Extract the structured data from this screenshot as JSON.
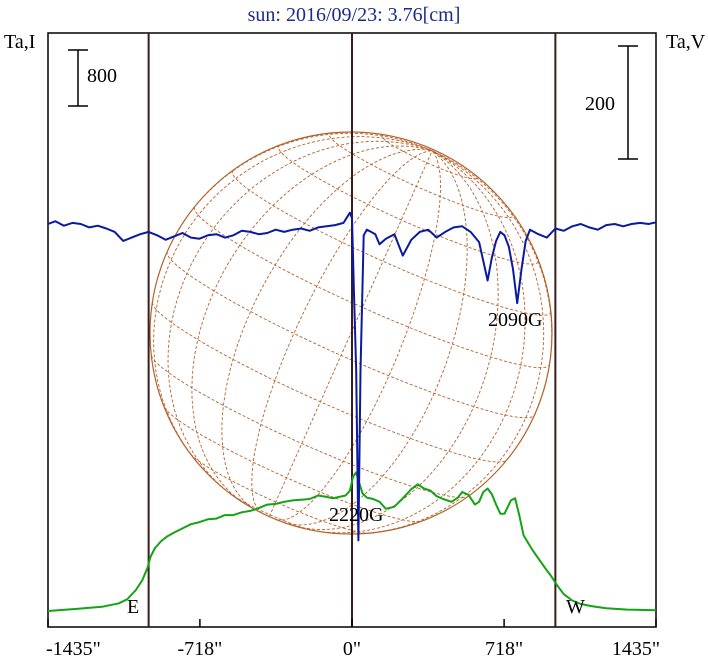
{
  "chart_data": {
    "type": "line",
    "title": "sun: 2016/09/23: 3.76[cm]",
    "left_axis_label": "Ta,I",
    "right_axis_label": "Ta,V",
    "x_ticks": [
      "-1435\"",
      "-718\"",
      "0\"",
      "718\"",
      "1435\""
    ],
    "x_tick_values": [
      -1435,
      -718,
      0,
      718,
      1435
    ],
    "xlim": [
      -1435,
      1435
    ],
    "scale_bars": {
      "intensity": "800",
      "polarization": "200"
    },
    "limb_markers": [
      {
        "label": "E",
        "x": -960
      },
      {
        "label": "W",
        "x": 960
      }
    ],
    "annotations": [
      {
        "text": "2220G",
        "x": 40
      },
      {
        "text": "2090G",
        "x": 780
      }
    ],
    "series": [
      {
        "color": "#14a314",
        "x": [
          -1435,
          -1300,
          -1180,
          -1100,
          -1060,
          -1020,
          -990,
          -965,
          -950,
          -930,
          -900,
          -870,
          -840,
          -800,
          -760,
          -720,
          -680,
          -640,
          -600,
          -560,
          -520,
          -480,
          -440,
          -400,
          -360,
          -320,
          -280,
          -240,
          -200,
          -160,
          -120,
          -90,
          -60,
          -30,
          -10,
          5,
          20,
          35,
          50,
          70,
          100,
          130,
          160,
          200,
          240,
          280,
          310,
          340,
          370,
          400,
          430,
          470,
          500,
          520,
          550,
          580,
          600,
          620,
          640,
          660,
          680,
          700,
          720,
          750,
          770,
          790,
          810,
          830,
          850,
          880,
          910,
          940,
          970,
          1000,
          1040,
          1080,
          1130,
          1200,
          1300,
          1435
        ],
        "values": [
          0,
          30,
          60,
          110,
          170,
          300,
          440,
          620,
          780,
          900,
          1000,
          1070,
          1120,
          1180,
          1240,
          1270,
          1310,
          1320,
          1370,
          1370,
          1410,
          1430,
          1470,
          1520,
          1530,
          1560,
          1580,
          1590,
          1600,
          1650,
          1630,
          1610,
          1630,
          1650,
          1720,
          1920,
          1980,
          1820,
          1680,
          1620,
          1600,
          1560,
          1460,
          1490,
          1610,
          1740,
          1810,
          1750,
          1720,
          1640,
          1600,
          1560,
          1620,
          1700,
          1660,
          1520,
          1560,
          1700,
          1750,
          1670,
          1520,
          1390,
          1390,
          1580,
          1610,
          1360,
          1080,
          980,
          880,
          750,
          620,
          500,
          360,
          240,
          150,
          100,
          70,
          40,
          20,
          10
        ]
      },
      {
        "color": "#0a1aa0",
        "x": [
          -1435,
          -1400,
          -1360,
          -1320,
          -1280,
          -1240,
          -1200,
          -1160,
          -1120,
          -1080,
          -1040,
          -1000,
          -960,
          -920,
          -880,
          -840,
          -800,
          -760,
          -720,
          -680,
          -640,
          -600,
          -560,
          -520,
          -480,
          -440,
          -400,
          -360,
          -320,
          -280,
          -240,
          -200,
          -160,
          -120,
          -80,
          -40,
          -10,
          0,
          10,
          20,
          30,
          40,
          55,
          70,
          90,
          110,
          130,
          160,
          200,
          240,
          280,
          320,
          360,
          400,
          440,
          480,
          520,
          560,
          600,
          640,
          660,
          680,
          700,
          720,
          740,
          760,
          780,
          800,
          820,
          840,
          880,
          920,
          960,
          1000,
          1040,
          1080,
          1120,
          1160,
          1200,
          1240,
          1280,
          1320,
          1360,
          1400,
          1435
        ],
        "values": [
          0,
          5,
          -3,
          2,
          0,
          -6,
          -3,
          -8,
          -14,
          -30,
          -24,
          -18,
          -14,
          -20,
          -28,
          -22,
          -16,
          -24,
          -26,
          -20,
          -18,
          -24,
          -20,
          -12,
          -14,
          -18,
          -16,
          -10,
          -14,
          -10,
          -8,
          -12,
          -6,
          -4,
          -2,
          2,
          20,
          10,
          -130,
          -260,
          -560,
          -260,
          -20,
          -10,
          -14,
          -18,
          -36,
          -26,
          -18,
          -56,
          -28,
          -14,
          -10,
          -24,
          -14,
          -6,
          -4,
          -14,
          -32,
          -100,
          -60,
          -30,
          -14,
          -20,
          -40,
          -80,
          -140,
          -80,
          -30,
          -10,
          -18,
          -24,
          -8,
          -12,
          -4,
          0,
          -6,
          -10,
          -2,
          0,
          -4,
          0,
          2,
          0,
          3
        ]
      }
    ]
  }
}
